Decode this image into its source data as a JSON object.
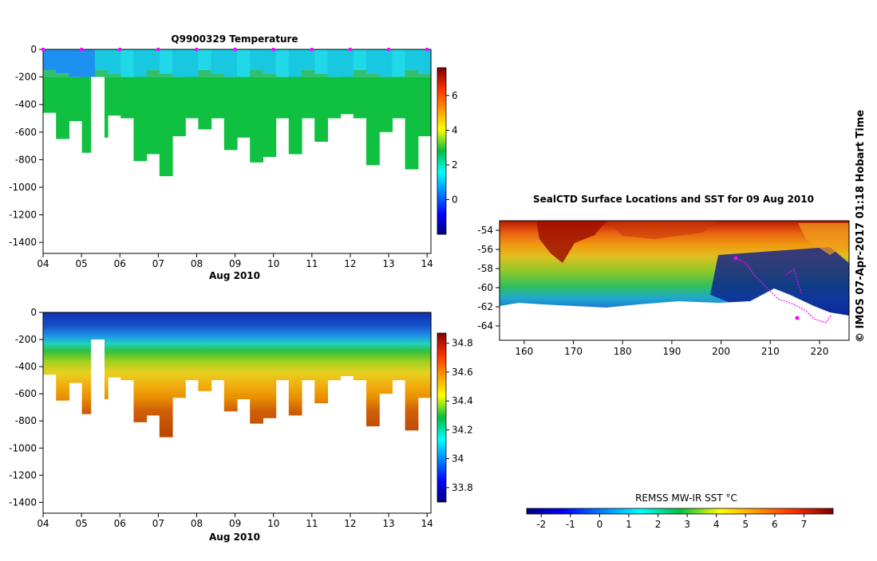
{
  "credit": "© IMOS 07-Apr-2017 01:18 Hobart Time",
  "chart_data": [
    {
      "type": "heatmap",
      "title": "Q9900329  Temperature",
      "xlabel": "Aug 2010",
      "xticks": [
        "04",
        "05",
        "06",
        "07",
        "08",
        "09",
        "10",
        "11",
        "12",
        "13",
        "14"
      ],
      "xrange": [
        4,
        14.1
      ],
      "yticks": [
        0,
        -200,
        -400,
        -600,
        -800,
        -1000,
        -1200,
        -1400
      ],
      "yrange": [
        -1480,
        0
      ],
      "profile_times": [
        4.0,
        5.0,
        6.0,
        7.0,
        8.0,
        9.0,
        10.0,
        11.0,
        12.0,
        13.0,
        14.0
      ],
      "profile_max_depth": [
        -460,
        -650,
        -520,
        -750,
        -640,
        -480,
        -500,
        -810,
        -760,
        -920,
        -630,
        -500,
        -580,
        -500,
        -730,
        -640,
        -820,
        -780,
        -500,
        -760,
        -500,
        -670,
        -500,
        -470,
        -500,
        -840,
        -600,
        -500,
        -870,
        -630
      ],
      "colorbar": {
        "min": -2,
        "max": 7.6,
        "ticks": [
          0,
          2,
          4,
          6
        ]
      }
    },
    {
      "type": "heatmap",
      "title": "",
      "xlabel": "Aug 2010",
      "xticks": [
        "04",
        "05",
        "06",
        "07",
        "08",
        "09",
        "10",
        "11",
        "12",
        "13",
        "14"
      ],
      "xrange": [
        4,
        14.1
      ],
      "yticks": [
        0,
        -200,
        -400,
        -600,
        -800,
        -1000,
        -1200,
        -1400
      ],
      "yrange": [
        -1480,
        0
      ],
      "colorbar": {
        "min": 33.7,
        "max": 34.87,
        "ticks": [
          33.8,
          34,
          34.2,
          34.4,
          34.6,
          34.8
        ]
      }
    },
    {
      "type": "heatmap",
      "title": "SealCTD Surface Locations and SST for 09 Aug 2010",
      "xticks": [
        160,
        170,
        180,
        190,
        200,
        210,
        220
      ],
      "xrange": [
        155,
        226
      ],
      "yticks": [
        -54,
        -56,
        -58,
        -60,
        -62,
        -64
      ],
      "yrange": [
        -65.5,
        -53
      ],
      "colorbar": {
        "label": "REMSS MW-IR SST °C",
        "min": -2.5,
        "max": 8,
        "ticks": [
          -2,
          -1,
          0,
          1,
          2,
          3,
          4,
          5,
          6,
          7
        ]
      }
    }
  ]
}
